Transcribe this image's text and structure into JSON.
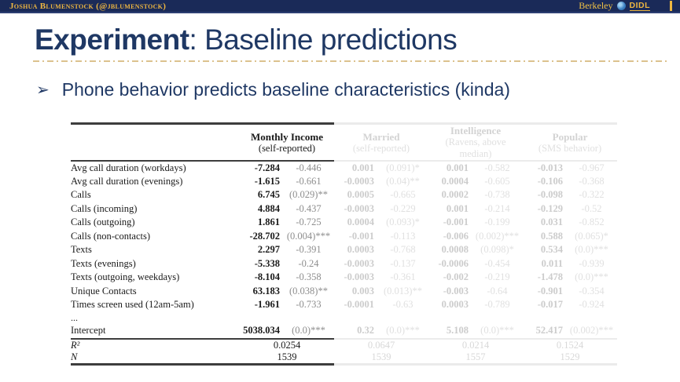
{
  "topbar": {
    "author": "Joshua Blumenstock (@jblumenstock)",
    "berkeley": "Berkeley",
    "didl": "DIDL",
    "colors": {
      "bar_bg": "#1a2a58",
      "gold": "#edb641"
    }
  },
  "slide": {
    "title_bold": "Experiment",
    "title_rest": ": Baseline predictions",
    "bullet_glyph": "➢",
    "bullet_text": "Phone behavior predicts baseline characteristics (kinda)",
    "title_color": "#1f3864"
  },
  "table": {
    "groups": [
      {
        "name": "Monthly Income",
        "sub": "(self-reported)",
        "faded": false
      },
      {
        "name": "Married",
        "sub": "(self-reported)",
        "faded": true
      },
      {
        "name": "Intelligence",
        "sub": "(Ravens, above median)",
        "faded": true
      },
      {
        "name": "Popular",
        "sub": "(SMS behavior)",
        "faded": true
      }
    ],
    "rows": [
      {
        "label": "Avg call duration (workdays)",
        "cells": [
          "-7.284",
          "-0.446",
          "0.001",
          "(0.091)*",
          "0.001",
          "-0.582",
          "-0.013",
          "-0.967"
        ]
      },
      {
        "label": "Avg call duration (evenings)",
        "cells": [
          "-1.615",
          "-0.661",
          "-0.0003",
          "(0.04)**",
          "0.0004",
          "-0.605",
          "-0.106",
          "-0.368"
        ]
      },
      {
        "label": "Calls",
        "cells": [
          "6.745",
          "(0.029)**",
          "0.0005",
          "-0.665",
          "0.0002",
          "-0.738",
          "-0.098",
          "-0.322"
        ]
      },
      {
        "label": "Calls (incoming)",
        "cells": [
          "4.884",
          "-0.437",
          "-0.0003",
          "-0.229",
          "0.001",
          "-0.214",
          "-0.129",
          "-0.52"
        ]
      },
      {
        "label": "Calls (outgoing)",
        "cells": [
          "1.861",
          "-0.725",
          "0.0004",
          "(0.093)*",
          "-0.001",
          "-0.199",
          "0.031",
          "-0.852"
        ]
      },
      {
        "label": "Calls (non-contacts)",
        "cells": [
          "-28.702",
          "(0.004)***",
          "-0.001",
          "-0.113",
          "-0.006",
          "(0.002)***",
          "0.588",
          "(0.065)*"
        ]
      },
      {
        "label": "Texts",
        "cells": [
          "2.297",
          "-0.391",
          "0.0003",
          "-0.768",
          "0.0008",
          "(0.098)*",
          "0.534",
          "(0.0)***"
        ]
      },
      {
        "label": "Texts (evenings)",
        "cells": [
          "-5.338",
          "-0.24",
          "-0.0003",
          "-0.137",
          "-0.0006",
          "-0.454",
          "0.011",
          "-0.939"
        ]
      },
      {
        "label": "Texts (outgoing, weekdays)",
        "cells": [
          "-8.104",
          "-0.358",
          "-0.0003",
          "-0.361",
          "-0.002",
          "-0.219",
          "-1.478",
          "(0.0)***"
        ]
      },
      {
        "label": "Unique Contacts",
        "cells": [
          "63.183",
          "(0.038)**",
          "0.003",
          "(0.013)**",
          "-0.003",
          "-0.64",
          "-0.901",
          "-0.354"
        ]
      },
      {
        "label": "Times screen used (12am-5am)",
        "cells": [
          "-1.961",
          "-0.733",
          "-0.0001",
          "-0.63",
          "0.0003",
          "-0.789",
          "-0.017",
          "-0.924"
        ]
      }
    ],
    "ellipsis_label": "...",
    "intercept": {
      "label": "Intercept",
      "cells": [
        "5038.034",
        "(0.0)***",
        "0.32",
        "(0.0)***",
        "5.108",
        "(0.0)***",
        "52.417",
        "(0.002)***"
      ]
    },
    "stats": [
      {
        "label": "R²",
        "values": [
          "0.0254",
          "0.0647",
          "0.0214",
          "0.1524"
        ]
      },
      {
        "label": "N",
        "values": [
          "1539",
          "1539",
          "1557",
          "1529"
        ]
      }
    ]
  }
}
